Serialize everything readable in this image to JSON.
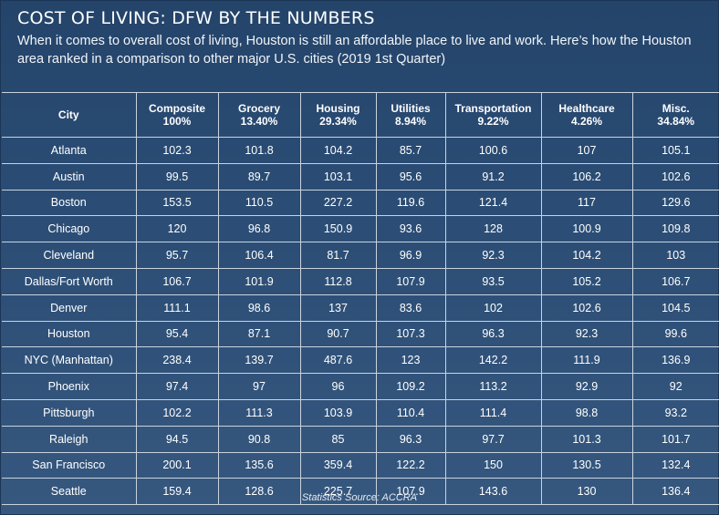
{
  "title": "COST OF LIVING: DFW BY THE NUMBERS",
  "subtitle": "When it comes to overall cost of living, Houston is still an affordable place to live and work. Here’s how the Houston area ranked in a comparison to other major U.S. cities (2019 1st Quarter)",
  "columns": [
    {
      "label": "City",
      "weight": ""
    },
    {
      "label": "Composite",
      "weight": "100%"
    },
    {
      "label": "Grocery",
      "weight": "13.40%"
    },
    {
      "label": "Housing",
      "weight": "29.34%"
    },
    {
      "label": "Utilities",
      "weight": "8.94%"
    },
    {
      "label": "Transportation",
      "weight": "9.22%"
    },
    {
      "label": "Healthcare",
      "weight": "4.26%"
    },
    {
      "label": "Misc.",
      "weight": "34.84%"
    }
  ],
  "rows": [
    [
      "Atlanta",
      "102.3",
      "101.8",
      "104.2",
      "85.7",
      "100.6",
      "107",
      "105.1"
    ],
    [
      "Austin",
      "99.5",
      "89.7",
      "103.1",
      "95.6",
      "91.2",
      "106.2",
      "102.6"
    ],
    [
      "Boston",
      "153.5",
      "110.5",
      "227.2",
      "119.6",
      "121.4",
      "117",
      "129.6"
    ],
    [
      "Chicago",
      "120",
      "96.8",
      "150.9",
      "93.6",
      "128",
      "100.9",
      "109.8"
    ],
    [
      "Cleveland",
      "95.7",
      "106.4",
      "81.7",
      "96.9",
      "92.3",
      "104.2",
      "103"
    ],
    [
      "Dallas/Fort Worth",
      "106.7",
      "101.9",
      "112.8",
      "107.9",
      "93.5",
      "105.2",
      "106.7"
    ],
    [
      "Denver",
      "111.1",
      "98.6",
      "137",
      "83.6",
      "102",
      "102.6",
      "104.5"
    ],
    [
      "Houston",
      "95.4",
      "87.1",
      "90.7",
      "107.3",
      "96.3",
      "92.3",
      "99.6"
    ],
    [
      "NYC (Manhattan)",
      "238.4",
      "139.7",
      "487.6",
      "123",
      "142.2",
      "111.9",
      "136.9"
    ],
    [
      "Phoenix",
      "97.4",
      "97",
      "96",
      "109.2",
      "113.2",
      "92.9",
      "92"
    ],
    [
      "Pittsburgh",
      "102.2",
      "111.3",
      "103.9",
      "110.4",
      "111.4",
      "98.8",
      "93.2"
    ],
    [
      "Raleigh",
      "94.5",
      "90.8",
      "85",
      "96.3",
      "97.7",
      "101.3",
      "101.7"
    ],
    [
      "San Francisco",
      "200.1",
      "135.6",
      "359.4",
      "122.2",
      "150",
      "130.5",
      "132.4"
    ],
    [
      "Seattle",
      "159.4",
      "128.6",
      "225.7",
      "107.9",
      "143.6",
      "130",
      "136.4"
    ]
  ],
  "source": "Statistics Source: ACCRA"
}
